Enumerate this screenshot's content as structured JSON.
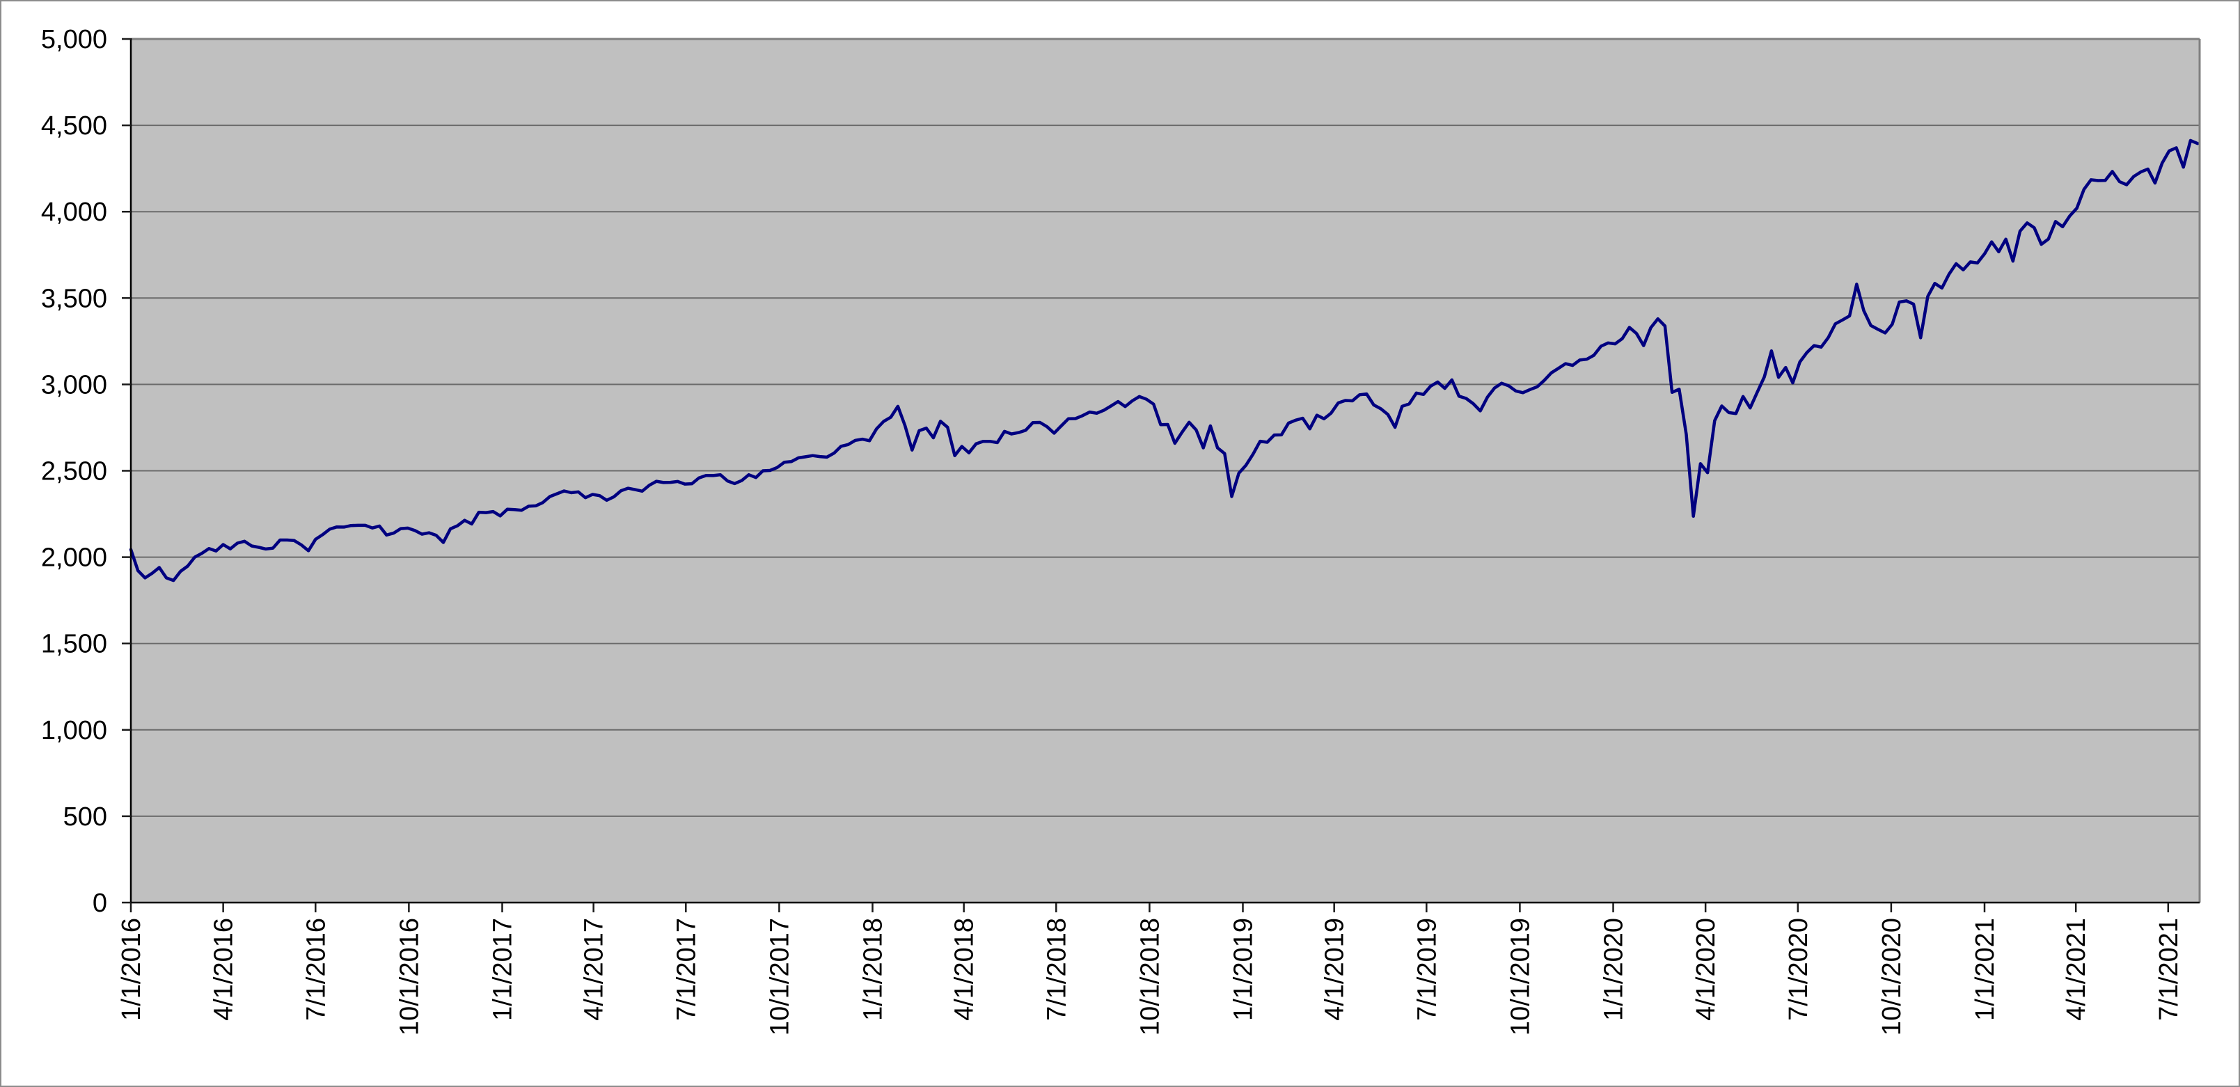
{
  "chart_data": {
    "type": "line",
    "title": "",
    "xlabel": "",
    "ylabel": "",
    "grid": "horizontal-only",
    "legend": "none",
    "plot_markers": "none",
    "ylim": [
      0,
      5000
    ],
    "y_tick_step": 500,
    "y_ticks": [
      "0",
      "500",
      "1,000",
      "1,500",
      "2,000",
      "2,500",
      "3,000",
      "3,500",
      "4,000",
      "4,500",
      "5,000"
    ],
    "x_ticks": [
      "1/1/2016",
      "4/1/2016",
      "7/1/2016",
      "10/1/2016",
      "1/1/2017",
      "4/1/2017",
      "7/1/2017",
      "10/1/2017",
      "1/1/2018",
      "4/1/2018",
      "7/1/2018",
      "10/1/2018",
      "1/1/2019",
      "4/1/2019",
      "7/1/2019",
      "10/1/2019",
      "1/1/2020",
      "4/1/2020",
      "7/1/2020",
      "10/1/2020",
      "1/1/2021",
      "4/1/2021",
      "7/1/2021"
    ],
    "x_tick_label_rotation_deg": -90,
    "x_range": [
      "1/1/2016",
      "8/1/2021"
    ],
    "series": [
      {
        "start_date": "1/1/2016",
        "interval_days": 7,
        "end_date": "7/30/2021",
        "values": [
          2044,
          1922,
          1880,
          1907,
          1940,
          1880,
          1865,
          1918,
          1948,
          2000,
          2022,
          2050,
          2036,
          2073,
          2048,
          2081,
          2092,
          2065,
          2057,
          2047,
          2052,
          2099,
          2099,
          2096,
          2071,
          2037,
          2103,
          2130,
          2162,
          2175,
          2174,
          2183,
          2184,
          2184,
          2169,
          2180,
          2128,
          2139,
          2165,
          2168,
          2154,
          2133,
          2141,
          2126,
          2085,
          2164,
          2182,
          2213,
          2192,
          2260,
          2258,
          2264,
          2239,
          2277,
          2275,
          2271,
          2295,
          2297,
          2316,
          2351,
          2367,
          2383,
          2373,
          2378,
          2344,
          2363,
          2356,
          2329,
          2349,
          2384,
          2399,
          2391,
          2382,
          2416,
          2439,
          2432,
          2433,
          2438,
          2423,
          2425,
          2459,
          2473,
          2472,
          2477,
          2441,
          2426,
          2443,
          2477,
          2461,
          2500,
          2502,
          2519,
          2549,
          2553,
          2575,
          2581,
          2588,
          2582,
          2579,
          2602,
          2642,
          2652,
          2676,
          2683,
          2674,
          2743,
          2786,
          2810,
          2873,
          2762,
          2620,
          2732,
          2747,
          2691,
          2787,
          2752,
          2588,
          2641,
          2604,
          2656,
          2670,
          2670,
          2663,
          2728,
          2713,
          2721,
          2735,
          2779,
          2780,
          2755,
          2718,
          2760,
          2801,
          2802,
          2819,
          2840,
          2833,
          2850,
          2875,
          2901,
          2872,
          2905,
          2930,
          2914,
          2886,
          2767,
          2768,
          2659,
          2723,
          2781,
          2736,
          2633,
          2760,
          2633,
          2600,
          2351,
          2486,
          2532,
          2596,
          2671,
          2665,
          2707,
          2708,
          2776,
          2793,
          2804,
          2743,
          2822,
          2801,
          2834,
          2893,
          2907,
          2905,
          2940,
          2945,
          2881,
          2859,
          2826,
          2752,
          2873,
          2887,
          2950,
          2942,
          2990,
          3014,
          2977,
          3026,
          2932,
          2919,
          2889,
          2847,
          2926,
          2979,
          3007,
          2992,
          2962,
          2952,
          2970,
          2986,
          3023,
          3067,
          3093,
          3120,
          3110,
          3141,
          3146,
          3169,
          3221,
          3240,
          3235,
          3265,
          3330,
          3295,
          3225,
          3328,
          3380,
          3338,
          2954,
          2972,
          2711,
          2237,
          2541,
          2489,
          2790,
          2875,
          2837,
          2831,
          2930,
          2864,
          2955,
          3044,
          3194,
          3041,
          3098,
          3009,
          3130,
          3185,
          3225,
          3216,
          3271,
          3351,
          3373,
          3397,
          3580,
          3427,
          3341,
          3319,
          3298,
          3348,
          3477,
          3484,
          3465,
          3270,
          3509,
          3585,
          3558,
          3638,
          3699,
          3663,
          3709,
          3703,
          3756,
          3825,
          3768,
          3841,
          3714,
          3887,
          3935,
          3907,
          3811,
          3842,
          3943,
          3913,
          3975,
          4020,
          4129,
          4185,
          4180,
          4181,
          4233,
          4174,
          4156,
          4204,
          4230,
          4247,
          4166,
          4281,
          4352,
          4370,
          4258,
          4412,
          4395
        ]
      }
    ],
    "colors": {
      "line": "#000080",
      "plot_background": "#c0c0c0",
      "gridline": "#6b6b6b",
      "axis_line": "#000000",
      "tick_mark": "#1a1a1a",
      "plot_border": "#808080",
      "page_background": "#ffffff",
      "label_text": "#000000"
    }
  }
}
